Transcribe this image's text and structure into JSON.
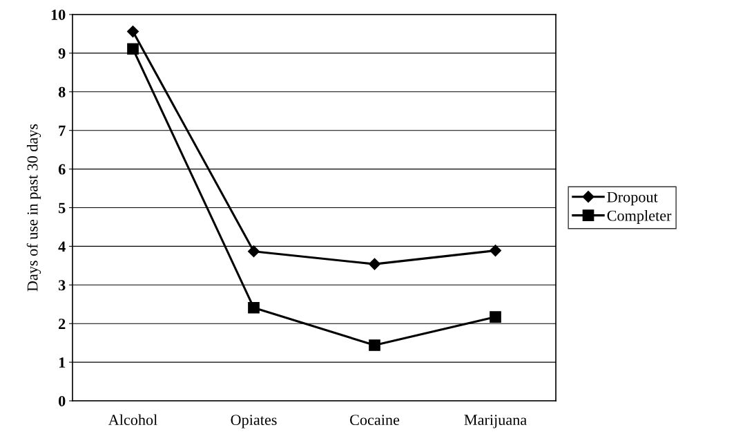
{
  "chart_data": {
    "type": "line",
    "ylabel": "Days of use in past 30 days",
    "categories": [
      "Alcohol",
      "Opiates",
      "Cocaine",
      "Marijuana"
    ],
    "series": [
      {
        "name": "Dropout",
        "color": "#000000",
        "marker": "diamond",
        "values": [
          9.56,
          3.87,
          3.54,
          3.89
        ]
      },
      {
        "name": "Completer",
        "color": "#000000",
        "marker": "square",
        "values": [
          9.11,
          2.41,
          1.44,
          2.17
        ]
      }
    ],
    "ylim": [
      0,
      10
    ],
    "yticks": [
      0,
      1,
      2,
      3,
      4,
      5,
      6,
      7,
      8,
      9,
      10
    ],
    "grid": "y",
    "legend": "right",
    "line_style": "solid"
  }
}
